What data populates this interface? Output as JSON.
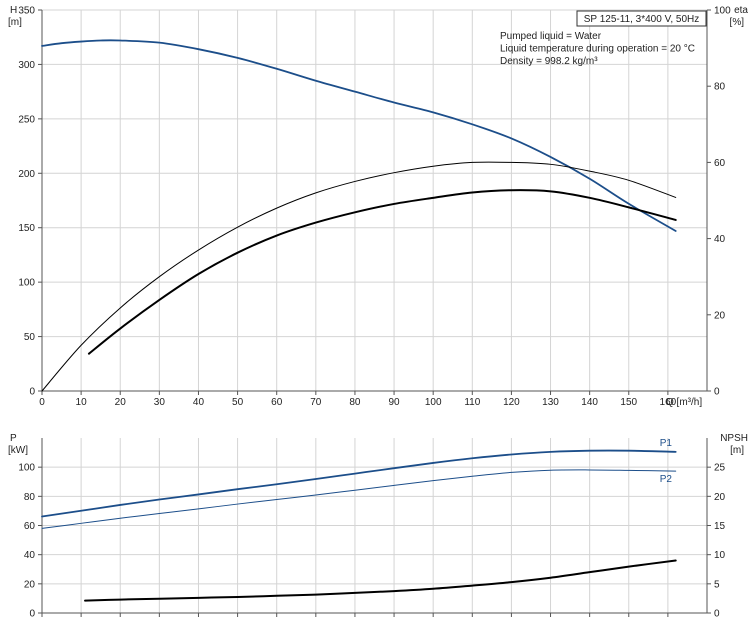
{
  "chart_data": [
    {
      "type": "line",
      "panel": "upper",
      "title_box": "SP 125-11, 3*400 V, 50Hz",
      "info_lines": [
        "Pumped liquid = Water",
        "Liquid temperature during operation = 20 °C",
        "Density = 998.2 kg/m³"
      ],
      "xlabel": "Q [m³/h]",
      "xlim": [
        0,
        170
      ],
      "x_ticks": [
        0,
        10,
        20,
        30,
        40,
        50,
        60,
        70,
        80,
        90,
        100,
        110,
        120,
        130,
        140,
        150,
        160
      ],
      "y_left": {
        "label_line1": "H",
        "label_line2": "[m]",
        "lim": [
          0,
          350
        ],
        "ticks": [
          0,
          50,
          100,
          150,
          200,
          250,
          300,
          350
        ]
      },
      "y_right": {
        "label_line1": "eta",
        "label_line2": "[%]",
        "lim": [
          0,
          100
        ],
        "ticks": [
          0,
          20,
          40,
          60,
          80,
          100
        ]
      },
      "series": [
        {
          "key": "head",
          "axis": "left",
          "color": "#1c4e8a",
          "width": 1.8,
          "x": [
            0,
            5,
            10,
            15,
            20,
            30,
            40,
            50,
            60,
            70,
            80,
            90,
            100,
            110,
            120,
            130,
            140,
            150,
            162
          ],
          "y": [
            317,
            319.5,
            321,
            322,
            322,
            320,
            314,
            306,
            296,
            285,
            275,
            265,
            256,
            245,
            232,
            215,
            195,
            172,
            147
          ]
        },
        {
          "key": "eta_thin",
          "axis": "right",
          "color": "#000000",
          "width": 1,
          "x": [
            0,
            10,
            20,
            30,
            40,
            50,
            60,
            70,
            80,
            90,
            100,
            110,
            120,
            130,
            140,
            150,
            162
          ],
          "y": [
            0,
            12,
            21.8,
            30,
            37,
            43,
            48,
            52,
            55,
            57.3,
            59,
            60,
            60,
            59.5,
            57.7,
            55.3,
            50.8
          ]
        },
        {
          "key": "eta_thick",
          "axis": "right",
          "color": "#000000",
          "width": 2,
          "x": [
            12,
            20,
            30,
            40,
            50,
            60,
            70,
            80,
            90,
            100,
            110,
            120,
            130,
            140,
            150,
            162
          ],
          "y": [
            9.8,
            16.4,
            23.9,
            30.7,
            36.3,
            40.8,
            44.2,
            46.9,
            49.1,
            50.7,
            52.1,
            52.7,
            52.4,
            50.7,
            48.2,
            44.9
          ]
        }
      ]
    },
    {
      "type": "line",
      "panel": "lower",
      "xlim": [
        0,
        170
      ],
      "x_ticks": [
        0,
        10,
        20,
        30,
        40,
        50,
        60,
        70,
        80,
        90,
        100,
        110,
        120,
        130,
        140,
        150,
        160
      ],
      "y_left": {
        "label_line1": "P",
        "label_line2": "[kW]",
        "lim": [
          0,
          120
        ],
        "ticks": [
          0,
          20,
          40,
          60,
          80,
          100
        ]
      },
      "y_right": {
        "label_line1": "NPSH",
        "label_line2": "[m]",
        "lim": [
          0,
          30
        ],
        "ticks": [
          0,
          5,
          10,
          15,
          20,
          25
        ]
      },
      "series": [
        {
          "key": "p1",
          "name": "P1",
          "axis": "left",
          "color": "#1c4e8a",
          "width": 1.8,
          "x": [
            0,
            10,
            20,
            30,
            40,
            50,
            60,
            70,
            80,
            90,
            100,
            110,
            120,
            130,
            140,
            150,
            162
          ],
          "y": [
            66.2,
            70.1,
            74.1,
            77.8,
            81.3,
            84.9,
            88.3,
            91.9,
            95.6,
            99.3,
            102.9,
            106.1,
            108.7,
            110.5,
            111.3,
            111.3,
            110.5
          ]
        },
        {
          "key": "p2",
          "name": "P2",
          "axis": "left",
          "color": "#1c4e8a",
          "width": 1,
          "x": [
            0,
            10,
            20,
            30,
            40,
            50,
            60,
            70,
            80,
            90,
            100,
            110,
            120,
            130,
            140,
            150,
            162
          ],
          "y": [
            58,
            61.5,
            65,
            68.2,
            71.4,
            74.7,
            77.8,
            80.9,
            84.2,
            87.5,
            90.8,
            93.8,
            96.4,
            97.9,
            98.1,
            97.8,
            97.3
          ]
        },
        {
          "key": "npsh",
          "axis": "right",
          "color": "#000000",
          "width": 2,
          "x": [
            11,
            20,
            30,
            40,
            50,
            60,
            70,
            80,
            90,
            100,
            110,
            120,
            130,
            140,
            150,
            162
          ],
          "y": [
            2.12,
            2.3,
            2.45,
            2.6,
            2.75,
            2.95,
            3.15,
            3.45,
            3.75,
            4.15,
            4.7,
            5.3,
            6.05,
            7.0,
            7.95,
            9.0
          ]
        }
      ]
    }
  ]
}
